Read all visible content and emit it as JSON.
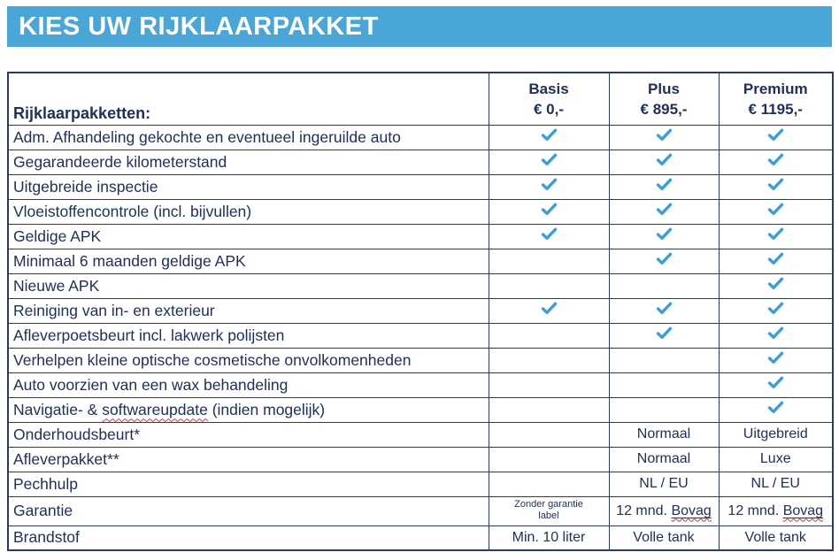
{
  "banner": {
    "title": "KIES UW RIJKLAARPAKKET"
  },
  "package_table": {
    "corner_label": "Rijklaarpakketten:",
    "packages": [
      {
        "name": "Basis",
        "price": "€ 0,-"
      },
      {
        "name": "Plus",
        "price": "€ 895,-"
      },
      {
        "name": "Premium",
        "price": "€ 1195,-"
      }
    ],
    "check_symbol": "✔",
    "rows": [
      {
        "feature": "Adm. Afhandeling gekochte en eventueel ingeruilde auto",
        "cells": [
          "check",
          "check",
          "check"
        ]
      },
      {
        "feature": "Gegarandeerde kilometerstand",
        "cells": [
          "check",
          "check",
          "check"
        ]
      },
      {
        "feature": "Uitgebreide inspectie",
        "cells": [
          "check",
          "check",
          "check"
        ]
      },
      {
        "feature": "Vloeistoffencontrole (incl. bijvullen)",
        "cells": [
          "check",
          "check",
          "check"
        ]
      },
      {
        "feature": "Geldige APK",
        "cells": [
          "check",
          "check",
          "check"
        ]
      },
      {
        "feature": "Minimaal 6 maanden geldige APK",
        "cells": [
          "",
          "check",
          "check"
        ]
      },
      {
        "feature": "Nieuwe APK",
        "cells": [
          "",
          "",
          "check"
        ]
      },
      {
        "feature": "Reiniging van in- en exterieur",
        "cells": [
          "check",
          "check",
          "check"
        ]
      },
      {
        "feature": "Afleverpoetsbeurt incl. lakwerk polijsten",
        "cells": [
          "",
          "check",
          "check"
        ]
      },
      {
        "feature": "Verhelpen kleine optische cosmetische onvolkomenheden",
        "cells": [
          "",
          "",
          "check"
        ]
      },
      {
        "feature": "Auto voorzien van een wax behandeling",
        "cells": [
          "",
          "",
          "check"
        ]
      },
      {
        "feature": {
          "pre": "Navigatie- & ",
          "misspelled": "softwareupdate",
          "post": " (indien mogelijk)"
        },
        "cells": [
          "",
          "",
          "check"
        ]
      },
      {
        "feature": "Onderhoudsbeurt*",
        "cells": [
          "",
          "Normaal",
          "Uitgebreid"
        ]
      },
      {
        "feature": "Afleverpakket**",
        "cells": [
          "",
          "Normaal",
          "Luxe"
        ]
      },
      {
        "feature": "Pechhulp",
        "cells": [
          "",
          "NL / EU",
          "NL / EU"
        ]
      },
      {
        "feature": "Garantie",
        "cells": [
          {
            "text": "Zonder garantie label",
            "style": "small"
          },
          {
            "pre": "12 mnd. ",
            "misspelled_underlined": "Bovag"
          },
          {
            "pre": "12 mnd. ",
            "misspelled_underlined": "Bovag"
          }
        ]
      },
      {
        "feature": "Brandstof",
        "cells": [
          "Min. 10 liter",
          "Volle tank",
          "Volle tank"
        ]
      }
    ]
  },
  "colors": {
    "banner_blue": "#4BA6D8",
    "text_navy": "#20305A",
    "check_blue": "#3F9ED1",
    "border_navy": "#2B3A60",
    "squiggle_red": "#C43B3B"
  }
}
